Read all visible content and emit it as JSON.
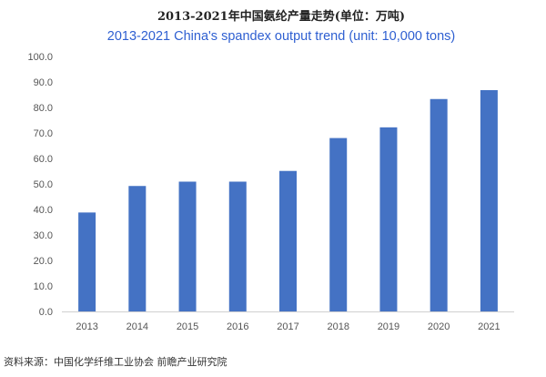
{
  "chart_data": {
    "type": "bar",
    "title_cn": "2013-2021年中国氨纶产量走势(单位：万吨)",
    "title": "2013-2021 China's spandex output trend (unit: 10,000 tons)",
    "categories": [
      "2013",
      "2014",
      "2015",
      "2016",
      "2017",
      "2018",
      "2019",
      "2020",
      "2021"
    ],
    "values": [
      38.8,
      49.2,
      50.9,
      50.9,
      55.1,
      68.0,
      72.2,
      83.3,
      86.8
    ],
    "yticks": [
      "0.0",
      "10.0",
      "20.0",
      "30.0",
      "40.0",
      "50.0",
      "60.0",
      "70.0",
      "80.0",
      "90.0",
      "100.0"
    ],
    "ylim": [
      0,
      100
    ],
    "xlabel": "",
    "ylabel": "",
    "grid": false,
    "colors": {
      "bar": "#4472c4",
      "title_en": "#2e5fd1",
      "axis": "#d0d0d0",
      "tick": "#555555"
    }
  },
  "footer": {
    "source": "资料来源：中国化学纤维工业协会 前瞻产业研究院"
  }
}
